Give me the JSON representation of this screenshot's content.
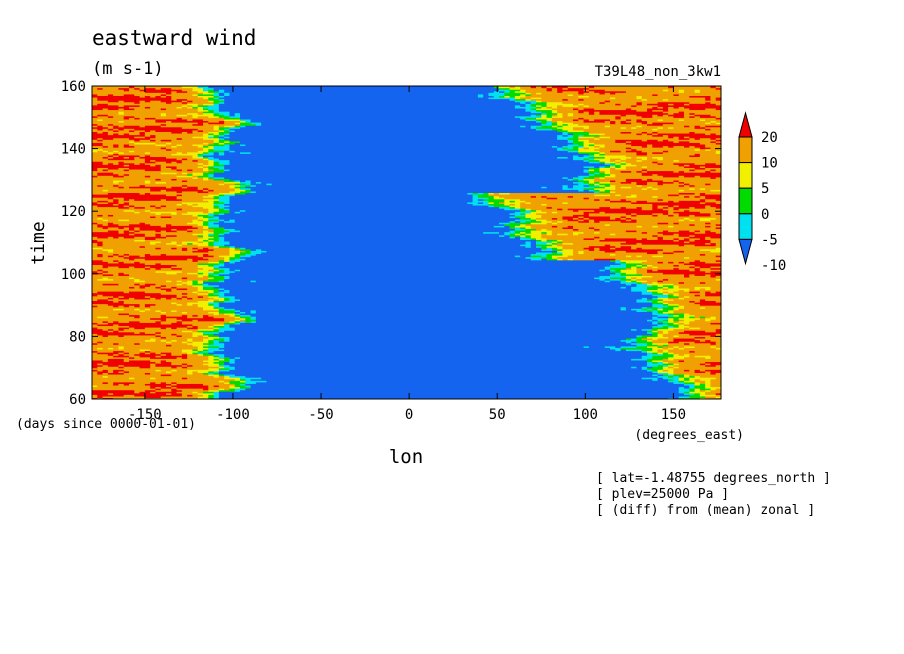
{
  "chart_data": {
    "type": "heatmap",
    "title": "eastward wind",
    "units": "(m s-1)",
    "run_label": "T39L48_non_3kw1",
    "xlabel": "lon",
    "x_units": "(degrees_east)",
    "ylabel": "time",
    "y_units": "(days since 0000-01-01)",
    "xlim": [
      -180,
      177
    ],
    "ylim": [
      60,
      160
    ],
    "x_ticks": [
      -150,
      -100,
      -50,
      0,
      50,
      100,
      150
    ],
    "y_ticks": [
      60,
      80,
      100,
      120,
      140,
      160
    ],
    "colorbar": {
      "levels": [
        -10,
        -5,
        0,
        5,
        10,
        20
      ],
      "colors": [
        "#1464f0",
        "#00e1f0",
        "#00dc00",
        "#f0f000",
        "#f0a000",
        "#f00000"
      ]
    },
    "annotations": [
      "[ lat=-1.48755 degrees_north ]",
      "[ plev=25000 Pa ]",
      "[ (diff) from (mean) zonal ]"
    ]
  }
}
